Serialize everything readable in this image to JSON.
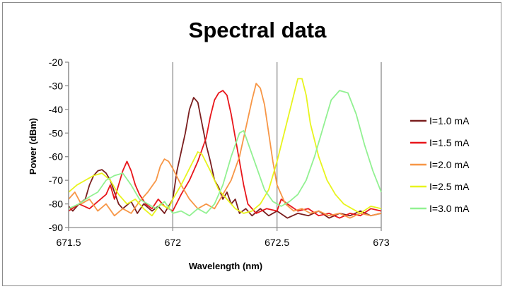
{
  "chart_data": {
    "type": "line",
    "title": "Spectral data",
    "xlabel": "Wavelength (nm)",
    "ylabel": "Power (dBm)",
    "xlim": [
      671.5,
      673
    ],
    "ylim": [
      -90,
      -20
    ],
    "xticks": [
      671.5,
      672,
      672.5,
      673
    ],
    "xtick_labels": [
      "671.5",
      "672",
      "672.5",
      "673"
    ],
    "yticks": [
      -90,
      -80,
      -70,
      -60,
      -50,
      -40,
      -30,
      -20
    ],
    "ytick_labels": [
      "-90",
      "-80",
      "-70",
      "-60",
      "-50",
      "-40",
      "-30",
      "-20"
    ],
    "grid": "vertical",
    "legend": "right",
    "series": [
      {
        "name": "I=1.0 mA",
        "color": "#7b1f1f",
        "points": [
          [
            671.5,
            -81
          ],
          [
            671.52,
            -83
          ],
          [
            671.55,
            -80
          ],
          [
            671.58,
            -78
          ],
          [
            671.6,
            -72
          ],
          [
            671.62,
            -68
          ],
          [
            671.64,
            -66
          ],
          [
            671.66,
            -65.5
          ],
          [
            671.68,
            -67
          ],
          [
            671.7,
            -70
          ],
          [
            671.72,
            -75
          ],
          [
            671.74,
            -80
          ],
          [
            671.76,
            -82
          ],
          [
            671.8,
            -79
          ],
          [
            671.83,
            -84
          ],
          [
            671.86,
            -80
          ],
          [
            671.9,
            -83
          ],
          [
            671.93,
            -81
          ],
          [
            671.96,
            -84
          ],
          [
            672.0,
            -78
          ],
          [
            672.02,
            -66
          ],
          [
            672.04,
            -58
          ],
          [
            672.06,
            -50
          ],
          [
            672.08,
            -40
          ],
          [
            672.1,
            -35
          ],
          [
            672.12,
            -37
          ],
          [
            672.14,
            -46
          ],
          [
            672.16,
            -55
          ],
          [
            672.18,
            -62
          ],
          [
            672.2,
            -70
          ],
          [
            672.22,
            -73
          ],
          [
            672.24,
            -78
          ],
          [
            672.26,
            -75
          ],
          [
            672.28,
            -80
          ],
          [
            672.3,
            -78
          ],
          [
            672.32,
            -84
          ],
          [
            672.35,
            -82
          ],
          [
            672.38,
            -85
          ],
          [
            672.42,
            -82
          ],
          [
            672.46,
            -85
          ],
          [
            672.5,
            -83
          ],
          [
            672.55,
            -86
          ],
          [
            672.6,
            -84
          ],
          [
            672.65,
            -85
          ],
          [
            672.7,
            -83
          ],
          [
            672.75,
            -86
          ],
          [
            672.8,
            -84
          ],
          [
            672.85,
            -85
          ],
          [
            672.9,
            -83
          ],
          [
            672.95,
            -85
          ],
          [
            673.0,
            -84
          ]
        ]
      },
      {
        "name": "I=1.5 mA",
        "color": "#e8161b",
        "points": [
          [
            671.5,
            -83
          ],
          [
            671.55,
            -80
          ],
          [
            671.6,
            -82
          ],
          [
            671.64,
            -79
          ],
          [
            671.68,
            -76
          ],
          [
            671.7,
            -72
          ],
          [
            671.72,
            -78
          ],
          [
            671.74,
            -72
          ],
          [
            671.76,
            -66
          ],
          [
            671.78,
            -62
          ],
          [
            671.8,
            -66
          ],
          [
            671.82,
            -72
          ],
          [
            671.84,
            -76
          ],
          [
            671.87,
            -80
          ],
          [
            671.9,
            -82
          ],
          [
            671.93,
            -78
          ],
          [
            671.96,
            -81
          ],
          [
            672.0,
            -83
          ],
          [
            672.04,
            -76
          ],
          [
            672.08,
            -70
          ],
          [
            672.12,
            -62
          ],
          [
            672.16,
            -52
          ],
          [
            672.18,
            -43
          ],
          [
            672.2,
            -36
          ],
          [
            672.22,
            -33
          ],
          [
            672.24,
            -32
          ],
          [
            672.26,
            -34
          ],
          [
            672.28,
            -42
          ],
          [
            672.3,
            -52
          ],
          [
            672.32,
            -62
          ],
          [
            672.34,
            -72
          ],
          [
            672.36,
            -80
          ],
          [
            672.4,
            -84
          ],
          [
            672.45,
            -82
          ],
          [
            672.5,
            -83
          ],
          [
            672.52,
            -78
          ],
          [
            672.55,
            -80
          ],
          [
            672.6,
            -83
          ],
          [
            672.65,
            -82
          ],
          [
            672.7,
            -85
          ],
          [
            672.75,
            -84
          ],
          [
            672.8,
            -86
          ],
          [
            672.85,
            -84
          ],
          [
            672.9,
            -85
          ],
          [
            672.95,
            -82
          ],
          [
            673.0,
            -83
          ]
        ]
      },
      {
        "name": "I=2.0 mA",
        "color": "#f79646",
        "points": [
          [
            671.5,
            -78
          ],
          [
            671.53,
            -75
          ],
          [
            671.56,
            -80
          ],
          [
            671.6,
            -78
          ],
          [
            671.64,
            -83
          ],
          [
            671.68,
            -80
          ],
          [
            671.72,
            -85
          ],
          [
            671.76,
            -82
          ],
          [
            671.8,
            -84
          ],
          [
            671.84,
            -79
          ],
          [
            671.88,
            -75
          ],
          [
            671.92,
            -70
          ],
          [
            671.94,
            -64
          ],
          [
            671.96,
            -61
          ],
          [
            671.98,
            -62
          ],
          [
            672.0,
            -65
          ],
          [
            672.04,
            -72
          ],
          [
            672.08,
            -78
          ],
          [
            672.12,
            -82
          ],
          [
            672.16,
            -80
          ],
          [
            672.2,
            -82
          ],
          [
            672.24,
            -76
          ],
          [
            672.28,
            -70
          ],
          [
            672.32,
            -60
          ],
          [
            672.35,
            -48
          ],
          [
            672.38,
            -36
          ],
          [
            672.4,
            -29
          ],
          [
            672.42,
            -31
          ],
          [
            672.44,
            -38
          ],
          [
            672.46,
            -50
          ],
          [
            672.48,
            -62
          ],
          [
            672.5,
            -72
          ],
          [
            672.54,
            -80
          ],
          [
            672.58,
            -83
          ],
          [
            672.62,
            -82
          ],
          [
            672.66,
            -84
          ],
          [
            672.7,
            -83
          ],
          [
            672.75,
            -85
          ],
          [
            672.8,
            -84
          ],
          [
            672.85,
            -86
          ],
          [
            672.9,
            -84
          ],
          [
            672.95,
            -85
          ],
          [
            673.0,
            -84
          ]
        ]
      },
      {
        "name": "I=2.5 mA",
        "color": "#e8f41e",
        "points": [
          [
            671.5,
            -75
          ],
          [
            671.54,
            -72
          ],
          [
            671.58,
            -70
          ],
          [
            671.62,
            -68
          ],
          [
            671.66,
            -67
          ],
          [
            671.7,
            -70
          ],
          [
            671.74,
            -76
          ],
          [
            671.78,
            -80
          ],
          [
            671.82,
            -78
          ],
          [
            671.86,
            -82
          ],
          [
            671.9,
            -85
          ],
          [
            671.94,
            -80
          ],
          [
            671.98,
            -82
          ],
          [
            672.0,
            -78
          ],
          [
            672.04,
            -72
          ],
          [
            672.08,
            -65
          ],
          [
            672.12,
            -58
          ],
          [
            672.14,
            -59
          ],
          [
            672.18,
            -66
          ],
          [
            672.22,
            -74
          ],
          [
            672.26,
            -78
          ],
          [
            672.3,
            -82
          ],
          [
            672.34,
            -84
          ],
          [
            672.38,
            -83
          ],
          [
            672.42,
            -80
          ],
          [
            672.46,
            -74
          ],
          [
            672.5,
            -62
          ],
          [
            672.54,
            -48
          ],
          [
            672.58,
            -34
          ],
          [
            672.6,
            -27
          ],
          [
            672.62,
            -27
          ],
          [
            672.64,
            -34
          ],
          [
            672.66,
            -46
          ],
          [
            672.7,
            -60
          ],
          [
            672.74,
            -70
          ],
          [
            672.78,
            -76
          ],
          [
            672.82,
            -80
          ],
          [
            672.86,
            -82
          ],
          [
            672.9,
            -84
          ],
          [
            672.95,
            -81
          ],
          [
            673.0,
            -82
          ]
        ]
      },
      {
        "name": "I=3.0 mA",
        "color": "#92f192",
        "points": [
          [
            671.5,
            -82
          ],
          [
            671.55,
            -80
          ],
          [
            671.6,
            -77
          ],
          [
            671.64,
            -75
          ],
          [
            671.68,
            -70
          ],
          [
            671.72,
            -68
          ],
          [
            671.76,
            -67
          ],
          [
            671.8,
            -72
          ],
          [
            671.84,
            -78
          ],
          [
            671.88,
            -80
          ],
          [
            671.92,
            -82
          ],
          [
            671.96,
            -79
          ],
          [
            672.0,
            -84
          ],
          [
            672.04,
            -83
          ],
          [
            672.08,
            -85
          ],
          [
            672.12,
            -82
          ],
          [
            672.16,
            -84
          ],
          [
            672.2,
            -80
          ],
          [
            672.24,
            -72
          ],
          [
            672.28,
            -60
          ],
          [
            672.32,
            -50
          ],
          [
            672.34,
            -49
          ],
          [
            672.36,
            -54
          ],
          [
            672.4,
            -64
          ],
          [
            672.44,
            -74
          ],
          [
            672.48,
            -79
          ],
          [
            672.52,
            -81
          ],
          [
            672.56,
            -79
          ],
          [
            672.6,
            -76
          ],
          [
            672.64,
            -70
          ],
          [
            672.68,
            -60
          ],
          [
            672.72,
            -48
          ],
          [
            672.76,
            -36
          ],
          [
            672.8,
            -32
          ],
          [
            672.84,
            -33
          ],
          [
            672.88,
            -42
          ],
          [
            672.92,
            -55
          ],
          [
            672.96,
            -66
          ],
          [
            673.0,
            -75
          ]
        ]
      }
    ]
  }
}
